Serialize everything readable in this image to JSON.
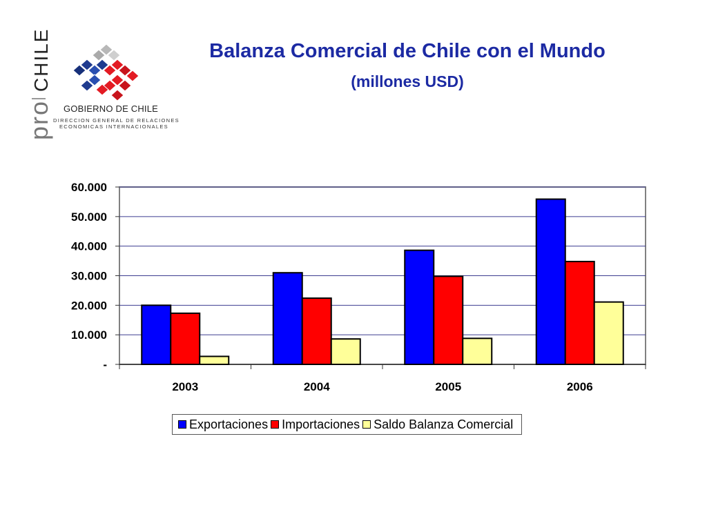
{
  "header": {
    "title": "Balanza Comercial de Chile con el Mundo",
    "subtitle": "(millones USD)"
  },
  "logo": {
    "brand_pro": "pro",
    "brand_chile": "CHILE",
    "gobierno": "GOBIERNO DE CHILE",
    "sub_line1": "DIRECCION GENERAL DE RELACIONES",
    "sub_line2": "ECONOMICAS INTERNACIONALES"
  },
  "colors": {
    "title": "#1c2aa3",
    "exportaciones": "#0000ff",
    "importaciones": "#ff0000",
    "saldo": "#ffff99",
    "grid": "#3b3b8f"
  },
  "chart_data": {
    "type": "bar",
    "categories": [
      "2003",
      "2004",
      "2005",
      "2006"
    ],
    "series": [
      {
        "name": "Exportaciones",
        "values": [
          20000,
          31000,
          38600,
          55900
        ]
      },
      {
        "name": "Importaciones",
        "values": [
          17300,
          22400,
          29800,
          34800
        ]
      },
      {
        "name": "Saldo Balanza Comercial",
        "values": [
          2700,
          8600,
          8800,
          21100
        ]
      }
    ],
    "yticks": [
      {
        "value": 0,
        "label": "-"
      },
      {
        "value": 10000,
        "label": "10.000"
      },
      {
        "value": 20000,
        "label": "20.000"
      },
      {
        "value": 30000,
        "label": "30.000"
      },
      {
        "value": 40000,
        "label": "40.000"
      },
      {
        "value": 50000,
        "label": "50.000"
      },
      {
        "value": 60000,
        "label": "60.000"
      }
    ],
    "ylim": [
      0,
      60000
    ],
    "grid": true,
    "legend_position": "bottom"
  }
}
